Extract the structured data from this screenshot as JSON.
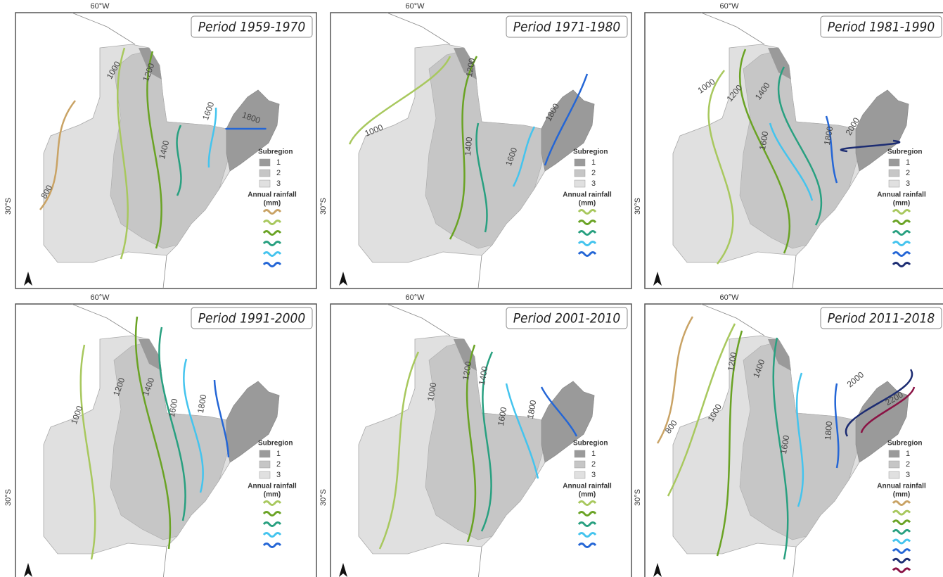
{
  "panels": [
    {
      "title": "Period 1959-1970",
      "longitude_label": "60°W",
      "latitude_label": "30°S",
      "legend": {
        "title": "Subregion",
        "subregions": [
          "1",
          "2",
          "3"
        ],
        "rainfall_title": "Annual rainfall",
        "rainfall_unit": "(mm)"
      },
      "isohyets": [
        {
          "label": "800",
          "color": "#c9a365"
        },
        {
          "label": "1000",
          "color": "#a8c85e"
        },
        {
          "label": "1200",
          "color": "#6aa324"
        },
        {
          "label": "1400",
          "color": "#28a080"
        },
        {
          "label": "1600",
          "color": "#44c4ee"
        },
        {
          "label": "1800",
          "color": "#2466d6"
        }
      ]
    },
    {
      "title": "Period 1971-1980",
      "longitude_label": "60°W",
      "latitude_label": "30°S",
      "legend": {
        "title": "Subregion",
        "subregions": [
          "1",
          "2",
          "3"
        ],
        "rainfall_title": "Annual rainfall",
        "rainfall_unit": "(mm)"
      },
      "isohyets": [
        {
          "label": "1000",
          "color": "#a8c85e"
        },
        {
          "label": "1200",
          "color": "#6aa324"
        },
        {
          "label": "1400",
          "color": "#28a080"
        },
        {
          "label": "1600",
          "color": "#44c4ee"
        },
        {
          "label": "1800",
          "color": "#2466d6"
        }
      ]
    },
    {
      "title": "Period 1981-1990",
      "longitude_label": "60°W",
      "latitude_label": "30°S",
      "legend": {
        "title": "Subregion",
        "subregions": [
          "1",
          "2",
          "3"
        ],
        "rainfall_title": "Annual rainfall",
        "rainfall_unit": "(mm)"
      },
      "isohyets": [
        {
          "label": "1000",
          "color": "#a8c85e"
        },
        {
          "label": "1200",
          "color": "#6aa324"
        },
        {
          "label": "1400",
          "color": "#28a080"
        },
        {
          "label": "1600",
          "color": "#44c4ee"
        },
        {
          "label": "1800",
          "color": "#2466d6"
        },
        {
          "label": "2000",
          "color": "#1c2c72"
        }
      ]
    },
    {
      "title": "Period 1991-2000",
      "longitude_label": "60°W",
      "latitude_label": "30°S",
      "legend": {
        "title": "Subregion",
        "subregions": [
          "1",
          "2",
          "3"
        ],
        "rainfall_title": "Annual rainfall",
        "rainfall_unit": "(mm)"
      },
      "isohyets": [
        {
          "label": "1000",
          "color": "#a8c85e"
        },
        {
          "label": "1200",
          "color": "#6aa324"
        },
        {
          "label": "1400",
          "color": "#28a080"
        },
        {
          "label": "1600",
          "color": "#44c4ee"
        },
        {
          "label": "1800",
          "color": "#2466d6"
        }
      ]
    },
    {
      "title": "Period 2001-2010",
      "longitude_label": "60°W",
      "latitude_label": "30°S",
      "legend": {
        "title": "Subregion",
        "subregions": [
          "1",
          "2",
          "3"
        ],
        "rainfall_title": "Annual rainfall",
        "rainfall_unit": "(mm)"
      },
      "isohyets": [
        {
          "label": "1000",
          "color": "#a8c85e"
        },
        {
          "label": "1200",
          "color": "#6aa324"
        },
        {
          "label": "1400",
          "color": "#28a080"
        },
        {
          "label": "1600",
          "color": "#44c4ee"
        },
        {
          "label": "1800",
          "color": "#2466d6"
        }
      ]
    },
    {
      "title": "Period 2011-2018",
      "longitude_label": "60°W",
      "latitude_label": "30°S",
      "legend": {
        "title": "Subregion",
        "subregions": [
          "1",
          "2",
          "3"
        ],
        "rainfall_title": "Annual rainfall",
        "rainfall_unit": "(mm)"
      },
      "isohyets": [
        {
          "label": "800",
          "color": "#c9a365"
        },
        {
          "label": "1000",
          "color": "#a8c85e"
        },
        {
          "label": "1200",
          "color": "#6aa324"
        },
        {
          "label": "1400",
          "color": "#28a080"
        },
        {
          "label": "1600",
          "color": "#44c4ee"
        },
        {
          "label": "1800",
          "color": "#2466d6"
        },
        {
          "label": "2000",
          "color": "#1c2c72"
        },
        {
          "label": "2200",
          "color": "#8a1244"
        }
      ]
    }
  ]
}
